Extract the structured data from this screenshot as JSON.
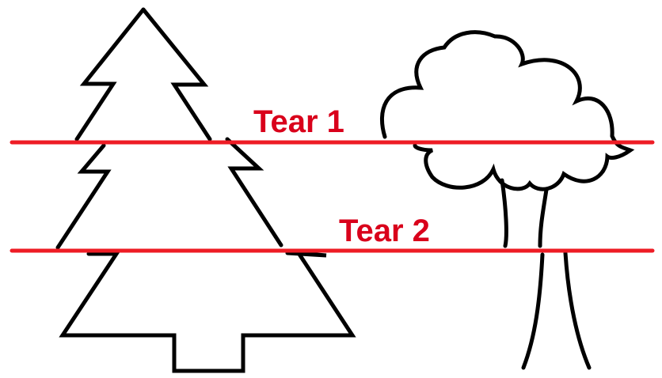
{
  "tears": [
    {
      "label": "Tear 1"
    },
    {
      "label": "Tear 2"
    }
  ],
  "colors": {
    "tear_line": "#ee1c25",
    "tear_label": "#d9001b",
    "outline": "#000000",
    "background": "#ffffff"
  },
  "shapes": {
    "left": "pine-tree",
    "right": "leafy-tree"
  }
}
